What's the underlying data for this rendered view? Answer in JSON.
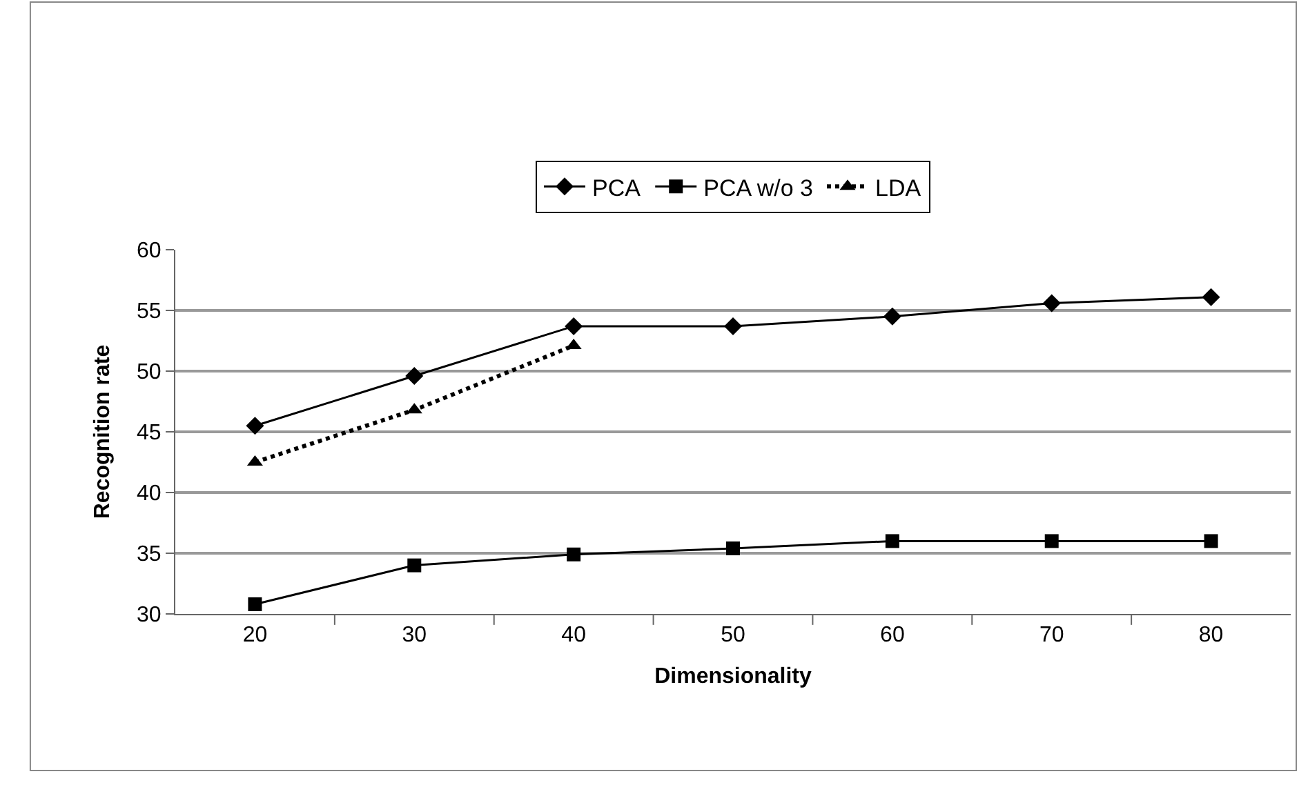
{
  "chart_data": {
    "type": "line",
    "xlabel": "Dimensionality",
    "ylabel": "Recognition rate",
    "categories": [
      "20",
      "30",
      "40",
      "50",
      "60",
      "70",
      "80"
    ],
    "series": [
      {
        "name": "PCA",
        "color": "#000000",
        "marker": "diamond",
        "line_style": "solid",
        "values": [
          45.5,
          49.6,
          53.7,
          53.7,
          54.5,
          55.6,
          56.1
        ]
      },
      {
        "name": "PCA w/o 3",
        "color": "#000000",
        "marker": "square",
        "line_style": "solid",
        "values": [
          30.8,
          34.0,
          34.9,
          35.4,
          36.0,
          36.0,
          36.0
        ]
      },
      {
        "name": "LDA",
        "color": "#000000",
        "marker": "triangle",
        "line_style": "dotted",
        "values": [
          42.5,
          46.8,
          52.1,
          null,
          null,
          null,
          null
        ]
      }
    ],
    "ylim": [
      30,
      60
    ],
    "yticks": [
      30,
      35,
      40,
      45,
      50,
      55,
      60
    ],
    "grid": "y",
    "legend": "top"
  }
}
